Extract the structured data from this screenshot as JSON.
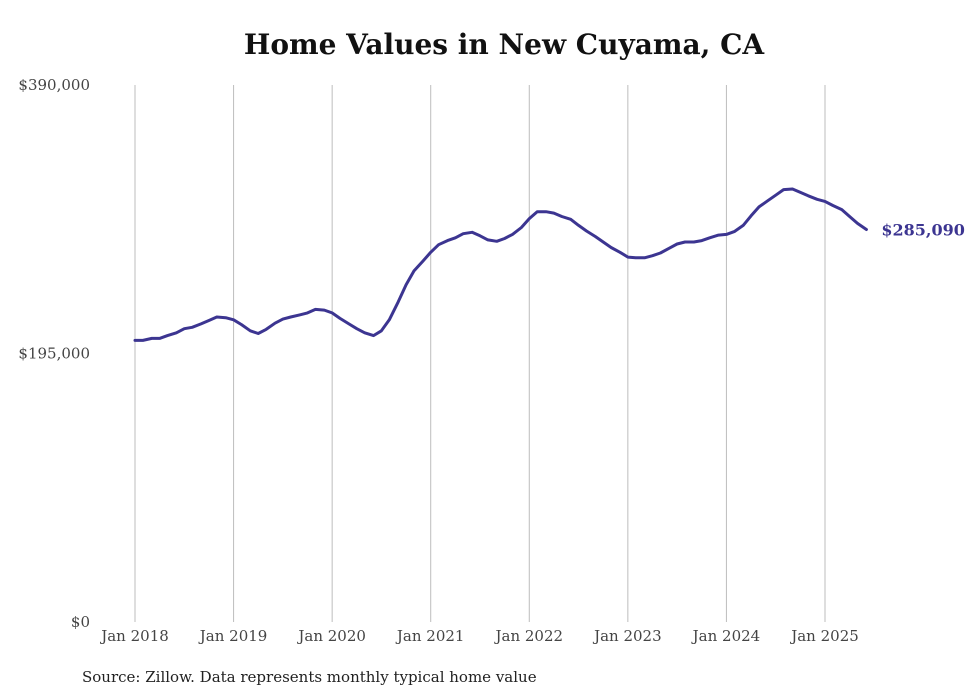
{
  "title": "Home Values in New Cuyama, CA",
  "source": "Source: Zillow. Data represents monthly typical home value",
  "chart_data": {
    "type": "line",
    "title": "Home Values in New Cuyama, CA",
    "xlabel": "",
    "ylabel": "",
    "ylim": [
      0,
      390000
    ],
    "y_ticks": [
      {
        "value": 0,
        "label": "$0"
      },
      {
        "value": 195000,
        "label": "$195,000"
      },
      {
        "value": 390000,
        "label": "$390,000"
      }
    ],
    "x_ticks": [
      {
        "value": 2018.0,
        "label": "Jan 2018"
      },
      {
        "value": 2019.0,
        "label": "Jan 2019"
      },
      {
        "value": 2020.0,
        "label": "Jan 2020"
      },
      {
        "value": 2021.0,
        "label": "Jan 2021"
      },
      {
        "value": 2022.0,
        "label": "Jan 2022"
      },
      {
        "value": 2023.0,
        "label": "Jan 2023"
      },
      {
        "value": 2024.0,
        "label": "Jan 2024"
      },
      {
        "value": 2025.0,
        "label": "Jan 2025"
      }
    ],
    "grid": {
      "vertical": true,
      "horizontal": false
    },
    "line_color": "#3c3591",
    "end_label": "$285,090",
    "series": [
      {
        "points": [
          [
            2018.0,
            204500
          ],
          [
            2018.08,
            204500
          ],
          [
            2018.17,
            206000
          ],
          [
            2018.25,
            206000
          ],
          [
            2018.33,
            208000
          ],
          [
            2018.42,
            210000
          ],
          [
            2018.5,
            213000
          ],
          [
            2018.58,
            214000
          ],
          [
            2018.67,
            216500
          ],
          [
            2018.75,
            219000
          ],
          [
            2018.83,
            221500
          ],
          [
            2018.92,
            221000
          ],
          [
            2019.0,
            219500
          ],
          [
            2019.08,
            216000
          ],
          [
            2019.17,
            211500
          ],
          [
            2019.25,
            209500
          ],
          [
            2019.33,
            212500
          ],
          [
            2019.42,
            217000
          ],
          [
            2019.5,
            220000
          ],
          [
            2019.58,
            221500
          ],
          [
            2019.67,
            223000
          ],
          [
            2019.75,
            224500
          ],
          [
            2019.83,
            227000
          ],
          [
            2019.92,
            226500
          ],
          [
            2020.0,
            224500
          ],
          [
            2020.08,
            220500
          ],
          [
            2020.17,
            216500
          ],
          [
            2020.25,
            213000
          ],
          [
            2020.33,
            210000
          ],
          [
            2020.42,
            208000
          ],
          [
            2020.5,
            211500
          ],
          [
            2020.58,
            219500
          ],
          [
            2020.67,
            232500
          ],
          [
            2020.75,
            245000
          ],
          [
            2020.83,
            255000
          ],
          [
            2020.92,
            262000
          ],
          [
            2021.0,
            268500
          ],
          [
            2021.08,
            274000
          ],
          [
            2021.17,
            277000
          ],
          [
            2021.25,
            279000
          ],
          [
            2021.33,
            282000
          ],
          [
            2021.42,
            283000
          ],
          [
            2021.5,
            280500
          ],
          [
            2021.58,
            277500
          ],
          [
            2021.67,
            276500
          ],
          [
            2021.75,
            278500
          ],
          [
            2021.83,
            281500
          ],
          [
            2021.92,
            286500
          ],
          [
            2022.0,
            293000
          ],
          [
            2022.08,
            298000
          ],
          [
            2022.17,
            298000
          ],
          [
            2022.25,
            297000
          ],
          [
            2022.33,
            294500
          ],
          [
            2022.42,
            292500
          ],
          [
            2022.5,
            288000
          ],
          [
            2022.58,
            284000
          ],
          [
            2022.67,
            280000
          ],
          [
            2022.75,
            276000
          ],
          [
            2022.83,
            272000
          ],
          [
            2022.92,
            268500
          ],
          [
            2023.0,
            265000
          ],
          [
            2023.08,
            264500
          ],
          [
            2023.17,
            264500
          ],
          [
            2023.25,
            266000
          ],
          [
            2023.33,
            268000
          ],
          [
            2023.42,
            271500
          ],
          [
            2023.5,
            274500
          ],
          [
            2023.58,
            276000
          ],
          [
            2023.67,
            276000
          ],
          [
            2023.75,
            277000
          ],
          [
            2023.83,
            279000
          ],
          [
            2023.92,
            281000
          ],
          [
            2024.0,
            281500
          ],
          [
            2024.08,
            283500
          ],
          [
            2024.17,
            288000
          ],
          [
            2024.25,
            295000
          ],
          [
            2024.33,
            301500
          ],
          [
            2024.42,
            306000
          ],
          [
            2024.5,
            310000
          ],
          [
            2024.58,
            314000
          ],
          [
            2024.67,
            314500
          ],
          [
            2024.75,
            312000
          ],
          [
            2024.83,
            309500
          ],
          [
            2024.92,
            307000
          ],
          [
            2025.0,
            305500
          ],
          [
            2025.08,
            302500
          ],
          [
            2025.17,
            299500
          ],
          [
            2025.25,
            294500
          ],
          [
            2025.33,
            289500
          ],
          [
            2025.42,
            285090
          ]
        ]
      }
    ]
  }
}
